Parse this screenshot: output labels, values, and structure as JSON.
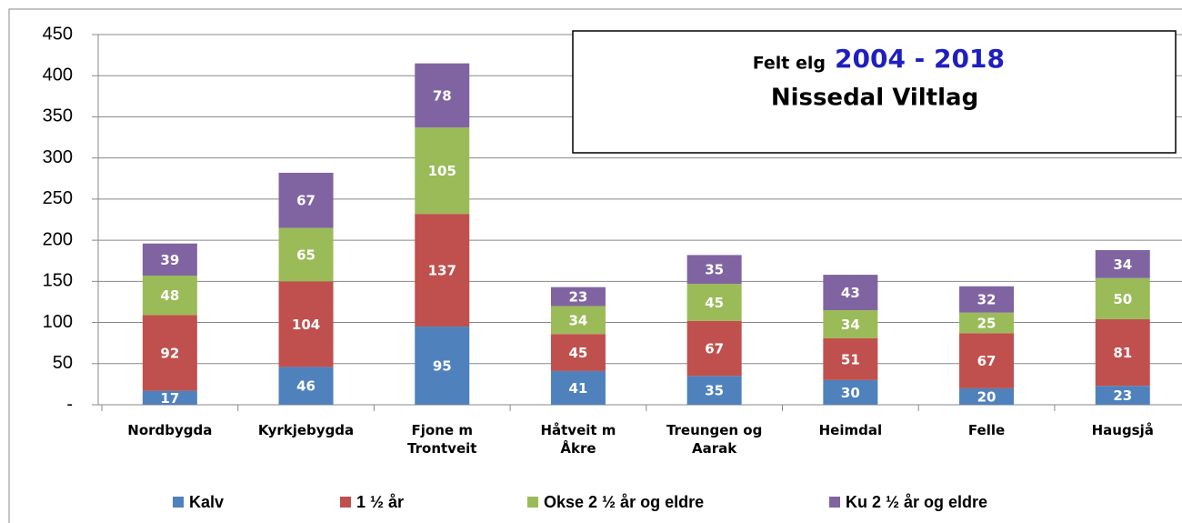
{
  "chart_data": {
    "type": "stacked_bar",
    "subtitle_label": "Felt elg",
    "period": "2004 - 2018",
    "title": "Nissedal Viltlag",
    "categories": [
      "Nordbygda",
      "Kyrkjebygda",
      "Fjone m Trontveit",
      "Håtveit m Åkre",
      "Treungen og Aarak",
      "Heimdal",
      "Felle",
      "Haugsjå"
    ],
    "series": [
      {
        "name": "Kalv",
        "color": "#4f81bd",
        "values": [
          17,
          46,
          95,
          41,
          35,
          30,
          20,
          23
        ]
      },
      {
        "name": "1 ½ år",
        "color": "#c0504d",
        "values": [
          92,
          104,
          137,
          45,
          67,
          51,
          67,
          81
        ]
      },
      {
        "name": "Okse 2 ½ år og eldre",
        "color": "#9bbb59",
        "values": [
          48,
          65,
          105,
          34,
          45,
          34,
          25,
          50
        ]
      },
      {
        "name": "Ku 2 ½ år og eldre",
        "color": "#8064a2",
        "values": [
          39,
          67,
          78,
          23,
          35,
          43,
          32,
          34
        ]
      }
    ],
    "ylim": [
      0,
      450
    ],
    "yticks": [
      {
        "value": 0,
        "label": "-"
      },
      50,
      100,
      150,
      200,
      250,
      300,
      350,
      400,
      450
    ],
    "grid": true,
    "legend": "bottom"
  }
}
